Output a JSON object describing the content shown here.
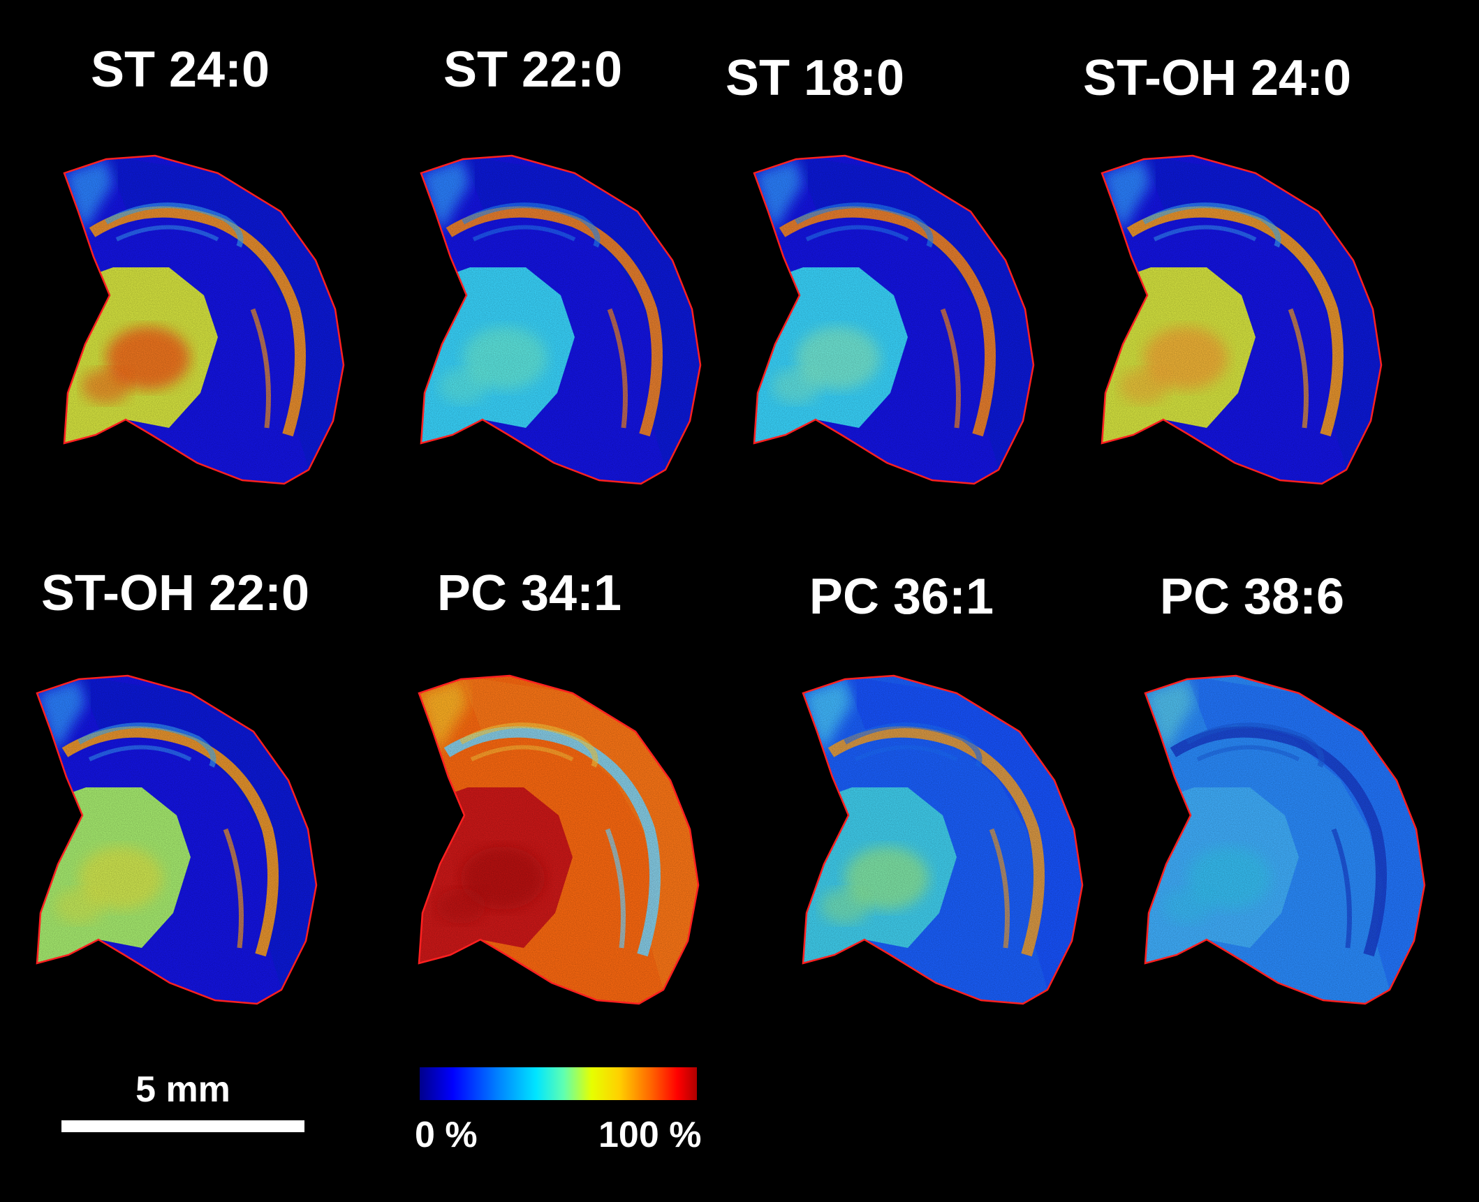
{
  "panels": [
    {
      "title": "ST 24:0",
      "map": "st24"
    },
    {
      "title": "ST 22:0",
      "map": "st22"
    },
    {
      "title": "ST 18:0",
      "map": "st18"
    },
    {
      "title": "ST-OH 24:0",
      "map": "stoh24"
    },
    {
      "title": "ST-OH 22:0",
      "map": "stoh22"
    },
    {
      "title": "PC 34:1",
      "map": "pc341"
    },
    {
      "title": "PC 36:1",
      "map": "pc361"
    },
    {
      "title": "PC 38:6",
      "map": "pc386"
    }
  ],
  "colorbar": {
    "min_label": "0 %",
    "max_label": "100 %",
    "colors": [
      "#00008b",
      "#0000ff",
      "#0080ff",
      "#00e5ff",
      "#60ffb0",
      "#e6ff00",
      "#ffd000",
      "#ff6000",
      "#ff0000",
      "#b00000"
    ]
  },
  "scale_bar": {
    "label": "5 mm"
  },
  "outline_color": "#ff2020"
}
